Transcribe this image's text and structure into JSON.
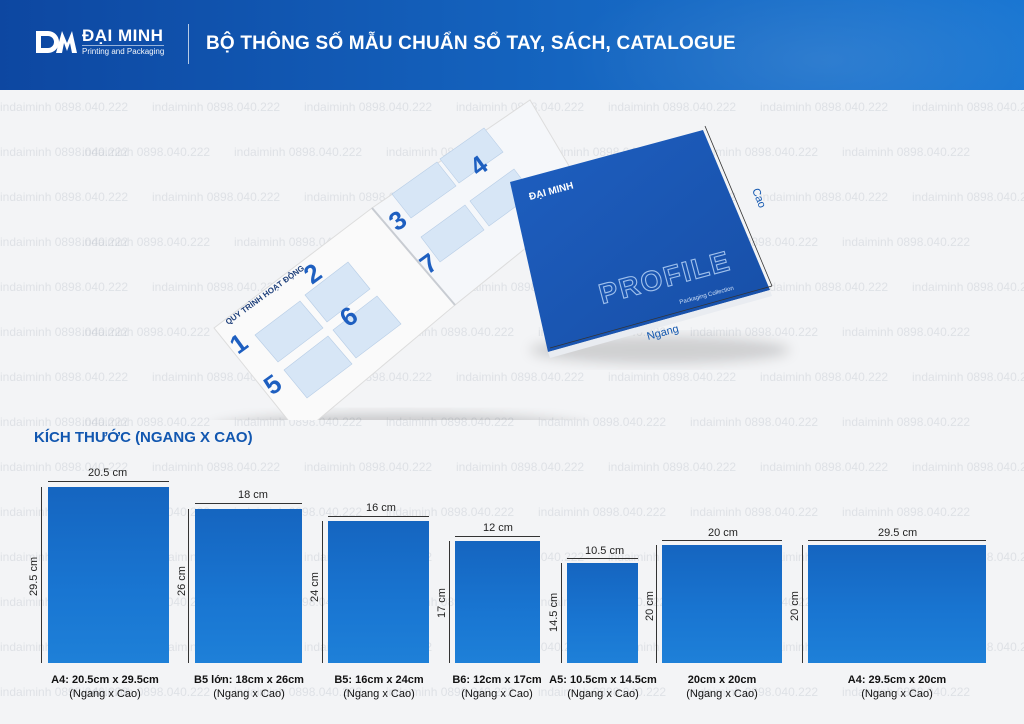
{
  "header": {
    "brand": "ĐẠI MINH",
    "brand_sub": "Printing and Packaging",
    "title": "BỘ THÔNG SỐ MẪU CHUẨN SỔ TAY, SÁCH, CATALOGUE",
    "logo_icon": "dm-logo-icon"
  },
  "watermark": "indaiminh 0898.040.222",
  "mockup": {
    "open_book_heading": "QUY TRÌNH HOẠT ĐỘNG",
    "steps": [
      "1",
      "2",
      "3",
      "4",
      "5",
      "6",
      "7"
    ],
    "cover_brand": "ĐẠI MINH",
    "cover_word": "PROFILE",
    "cover_sub": "Packaging Collection",
    "label_width": "Ngang",
    "label_height": "Cao"
  },
  "section_title": "KÍCH THƯỚC (NGANG X CAO)",
  "sizes": [
    {
      "w_label": "20.5 cm",
      "h_label": "29.5 cm",
      "name": "A4: 20.5cm x 29.5cm",
      "note": "(Ngang x Cao)",
      "w": 20.5,
      "h": 29.5
    },
    {
      "w_label": "18 cm",
      "h_label": "26 cm",
      "name": "B5 lớn: 18cm x 26cm",
      "note": "(Ngang x Cao)",
      "w": 18,
      "h": 26
    },
    {
      "w_label": "16 cm",
      "h_label": "24 cm",
      "name": "B5: 16cm x 24cm",
      "note": "(Ngang x Cao)",
      "w": 16,
      "h": 24
    },
    {
      "w_label": "12 cm",
      "h_label": "17 cm",
      "name": "B6: 12cm x 17cm",
      "note": "(Ngang x Cao)",
      "w": 12,
      "h": 17
    },
    {
      "w_label": "10.5 cm",
      "h_label": "14.5 cm",
      "name": "A5: 10.5cm x 14.5cm",
      "note": "(Ngang x Cao)",
      "w": 10.5,
      "h": 14.5
    },
    {
      "w_label": "20 cm",
      "h_label": "20 cm",
      "name": "20cm x 20cm",
      "note": "(Ngang x Cao)",
      "w": 20,
      "h": 20
    },
    {
      "w_label": "29.5 cm",
      "h_label": "20 cm",
      "name": "A4: 29.5cm x 20cm",
      "note": "(Ngang x Cao)",
      "w": 29.5,
      "h": 20
    }
  ],
  "colors": {
    "brand_blue": "#1565c0",
    "title_blue": "#1257b0"
  }
}
